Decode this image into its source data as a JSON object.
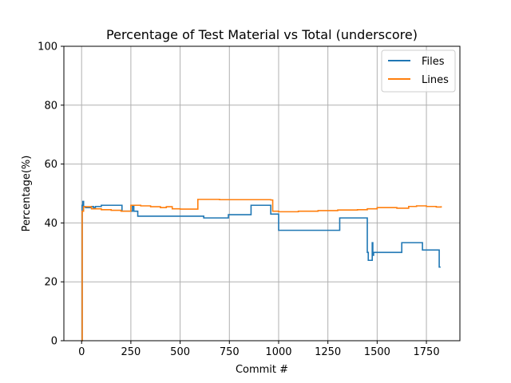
{
  "chart_data": {
    "type": "line",
    "title": "Percentage of Test Material vs Total (underscore)",
    "xlabel": "Commit #",
    "ylabel": "Percentage(%)",
    "xlim": [
      -90,
      1920
    ],
    "ylim": [
      0,
      100
    ],
    "xticks": [
      0,
      250,
      500,
      750,
      1000,
      1250,
      1500,
      1750
    ],
    "yticks": [
      0,
      20,
      40,
      60,
      80,
      100
    ],
    "grid": true,
    "legend_position": "upper right",
    "series": [
      {
        "name": "Files",
        "color": "#1f77b4",
        "step": true,
        "x": [
          0,
          3,
          6,
          10,
          20,
          50,
          60,
          70,
          90,
          100,
          150,
          200,
          205,
          258,
          265,
          278,
          285,
          500,
          620,
          745,
          860,
          960,
          990,
          1000,
          1310,
          1450,
          1455,
          1475,
          1478,
          1482,
          1490,
          1500,
          1625,
          1650,
          1730,
          1810,
          1815,
          1822
        ],
        "y": [
          0,
          46,
          47.3,
          45.5,
          45.2,
          45.6,
          45.2,
          45.6,
          45.6,
          46,
          46,
          46,
          44,
          45.6,
          44,
          44,
          42.3,
          42.3,
          41.7,
          42.8,
          46,
          43,
          43,
          37.5,
          41.7,
          30,
          27.3,
          33.3,
          29,
          30,
          30,
          30,
          33.3,
          33.3,
          30.8,
          30.8,
          25,
          25
        ]
      },
      {
        "name": "Lines",
        "color": "#ff7f0e",
        "step": true,
        "x": [
          0,
          3,
          10,
          50,
          100,
          150,
          200,
          250,
          300,
          350,
          400,
          430,
          460,
          500,
          590,
          700,
          800,
          960,
          970,
          1000,
          1100,
          1200,
          1300,
          1400,
          1450,
          1500,
          1600,
          1660,
          1700,
          1750,
          1800,
          1825
        ],
        "y": [
          0,
          44,
          45.5,
          44.8,
          44.5,
          44.3,
          44,
          46,
          45.8,
          45.5,
          45.2,
          45.5,
          44.8,
          44.7,
          48,
          47.9,
          47.9,
          47.8,
          44,
          43.8,
          44,
          44.2,
          44.4,
          44.5,
          44.8,
          45.2,
          45,
          45.6,
          45.8,
          45.6,
          45.4,
          45.7
        ]
      }
    ]
  }
}
